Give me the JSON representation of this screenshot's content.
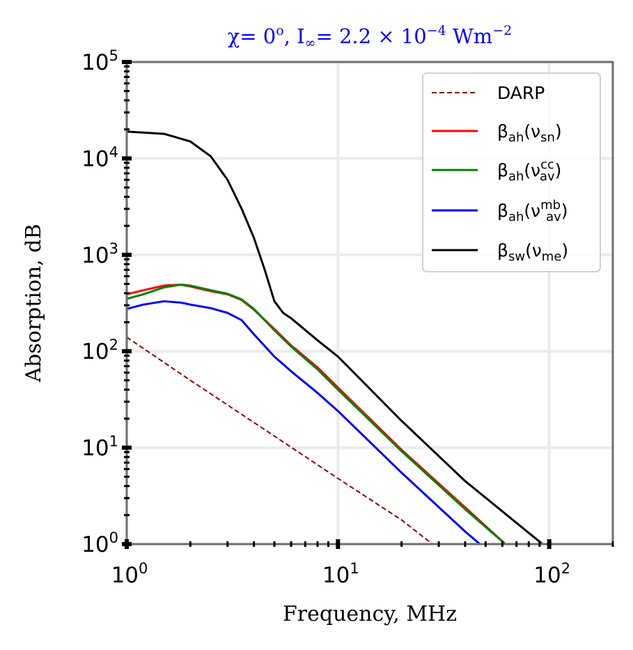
{
  "chart_data": {
    "type": "line",
    "title": {
      "chi": "χ",
      "chi_value": "= 0",
      "chi_unit": "o",
      "intensity": ", I",
      "intensity_sub": "∞",
      "intensity_value": "= 2.2 × 10",
      "intensity_exp": "−4",
      "intensity_unit": " Wm",
      "unit_exp": "−2"
    },
    "xlabel": "Frequency, MHz",
    "ylabel": "Absorption, dB",
    "x_scale": "log",
    "y_scale": "log",
    "xlim": [
      1,
      200
    ],
    "ylim": [
      1,
      100000
    ],
    "x_ticks": [
      {
        "value": 1,
        "base": "10",
        "exp": "0"
      },
      {
        "value": 10,
        "base": "10",
        "exp": "1"
      },
      {
        "value": 100,
        "base": "10",
        "exp": "2"
      }
    ],
    "y_ticks": [
      {
        "value": 1,
        "base": "10",
        "exp": "0"
      },
      {
        "value": 10,
        "base": "10",
        "exp": "1"
      },
      {
        "value": 100,
        "base": "10",
        "exp": "2"
      },
      {
        "value": 1000,
        "base": "10",
        "exp": "3"
      },
      {
        "value": 10000,
        "base": "10",
        "exp": "4"
      },
      {
        "value": 100000,
        "base": "10",
        "exp": "5"
      }
    ],
    "grid": true,
    "legend_position": "top-right",
    "series": [
      {
        "name": "DARP",
        "legend": {
          "main": "DARP",
          "sub": "",
          "arg": "",
          "arg_sub": "",
          "arg_sup": ""
        },
        "color": "#8b0000",
        "dashed": true,
        "x": [
          1,
          2,
          5,
          10,
          20,
          28
        ],
        "y": [
          140,
          50,
          13.2,
          4.8,
          1.78,
          1.0
        ]
      },
      {
        "name": "βah(νsn)",
        "legend": {
          "main": "β",
          "sub": "ah",
          "arg": "ν",
          "arg_sub": "sn",
          "arg_sup": ""
        },
        "color": "#ff0000",
        "dashed": false,
        "x": [
          1,
          1.2,
          1.5,
          1.8,
          2,
          2.5,
          3,
          3.5,
          4,
          5,
          6,
          8,
          10,
          20,
          40,
          62
        ],
        "y": [
          390,
          430,
          480,
          490,
          470,
          420,
          390,
          340,
          270,
          170,
          115,
          68,
          42,
          9.5,
          2.4,
          1.0
        ]
      },
      {
        "name": "βah(νav^cc)",
        "legend": {
          "main": "β",
          "sub": "ah",
          "arg": "ν",
          "arg_sub": "av",
          "arg_sup": "cc"
        },
        "color": "#008000",
        "dashed": false,
        "x": [
          1,
          1.2,
          1.5,
          1.8,
          2,
          2.5,
          3,
          3.5,
          4,
          5,
          6,
          8,
          10,
          20,
          40,
          62
        ],
        "y": [
          350,
          390,
          460,
          490,
          480,
          430,
          395,
          345,
          275,
          165,
          112,
          65,
          40,
          9.2,
          2.3,
          1.0
        ]
      },
      {
        "name": "βah(νav^mb)",
        "legend": {
          "main": "β",
          "sub": "ah",
          "arg": "ν",
          "arg_sub": "av",
          "arg_sup": "mb"
        },
        "color": "#0000ff",
        "dashed": false,
        "x": [
          1,
          1.2,
          1.5,
          1.8,
          2,
          2.5,
          3,
          3.5,
          4,
          5,
          6,
          8,
          10,
          20,
          40,
          47
        ],
        "y": [
          275,
          305,
          330,
          320,
          305,
          280,
          250,
          210,
          150,
          88,
          62,
          37,
          24,
          5.5,
          1.35,
          1.0
        ]
      },
      {
        "name": "βsw(νme)",
        "legend": {
          "main": "β",
          "sub": "sw",
          "arg": "ν",
          "arg_sub": "me",
          "arg_sup": ""
        },
        "color": "#000000",
        "dashed": false,
        "x": [
          1,
          1.5,
          2,
          2.5,
          3,
          3.5,
          4,
          4.5,
          5,
          5.5,
          6,
          8,
          10,
          20,
          40,
          93
        ],
        "y": [
          19000,
          18000,
          15000,
          10500,
          6000,
          3000,
          1500,
          700,
          330,
          250,
          220,
          130,
          88,
          19,
          4.5,
          1.0
        ]
      }
    ]
  }
}
